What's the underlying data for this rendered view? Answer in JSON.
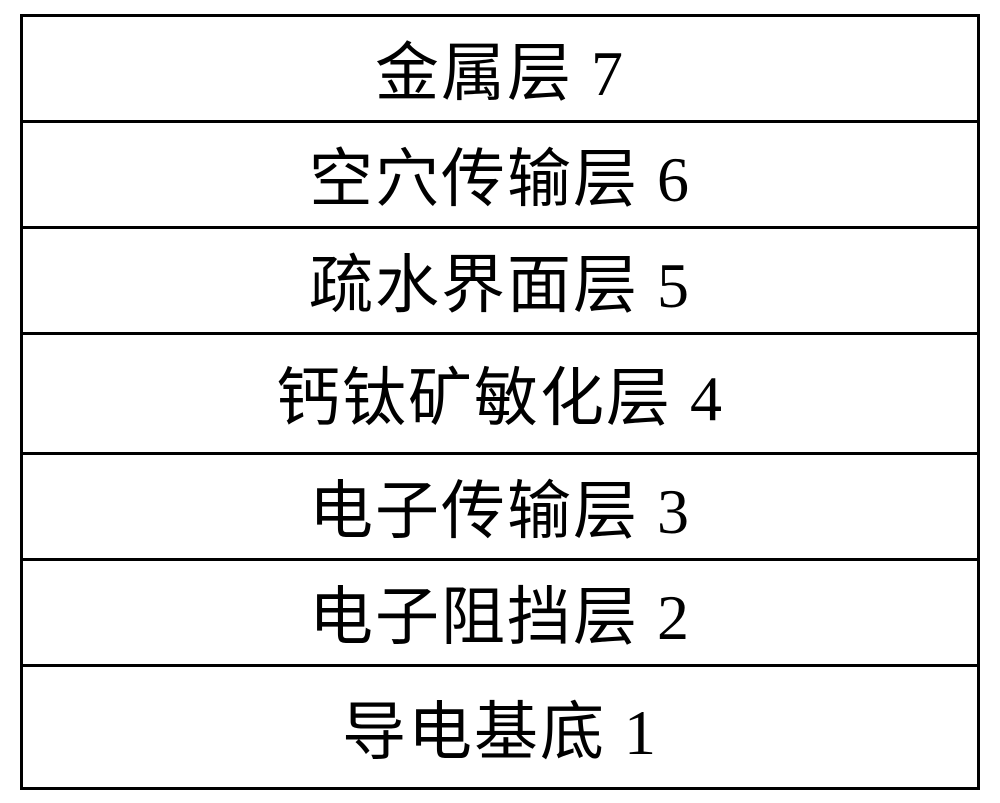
{
  "diagram": {
    "type": "layer-stack",
    "border_color": "#000000",
    "border_width": 3,
    "background_color": "#ffffff",
    "text_color": "#000000",
    "font_family": "SimSun",
    "font_size": 64,
    "layers": [
      {
        "label": "金属层 7",
        "height": 106
      },
      {
        "label": "空穴传输层 6",
        "height": 106
      },
      {
        "label": "疏水界面层 5",
        "height": 106
      },
      {
        "label": "钙钛矿敏化层 4",
        "height": 120
      },
      {
        "label": "电子传输层 3",
        "height": 106
      },
      {
        "label": "电子阻挡层 2",
        "height": 106
      },
      {
        "label": "导电基底 1",
        "height": 120
      }
    ]
  }
}
